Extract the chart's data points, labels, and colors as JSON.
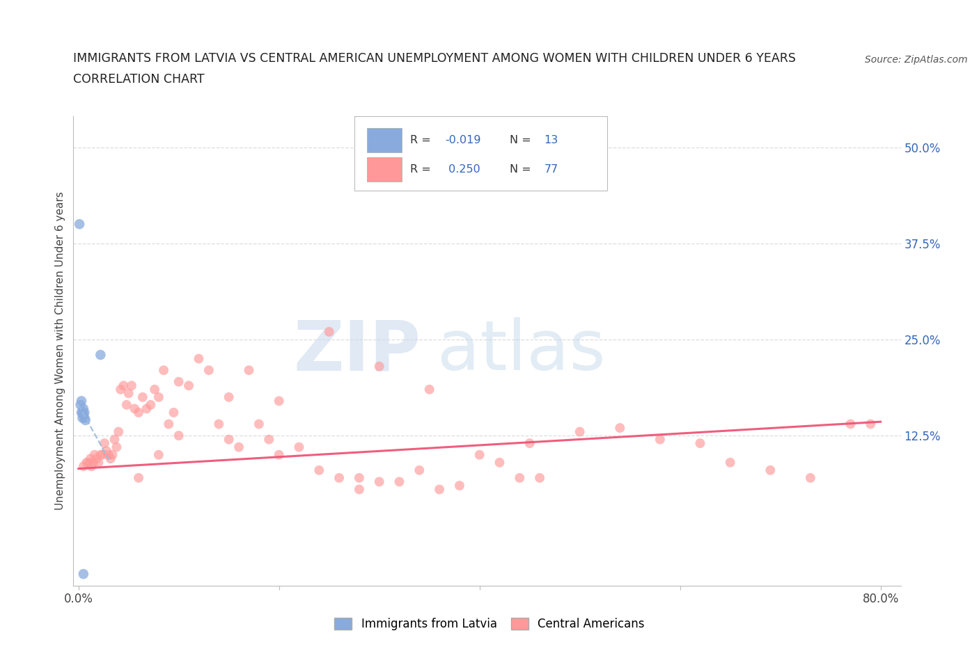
{
  "title_line1": "IMMIGRANTS FROM LATVIA VS CENTRAL AMERICAN UNEMPLOYMENT AMONG WOMEN WITH CHILDREN UNDER 6 YEARS",
  "title_line2": "CORRELATION CHART",
  "source_text": "Source: ZipAtlas.com",
  "ylabel": "Unemployment Among Women with Children Under 6 years",
  "xlim": [
    -0.005,
    0.82
  ],
  "ylim": [
    -0.07,
    0.54
  ],
  "xtick_positions": [
    0.0,
    0.2,
    0.4,
    0.6,
    0.8
  ],
  "xtick_labels": [
    "0.0%",
    "",
    "",
    "",
    "80.0%"
  ],
  "ytick_right": [
    0.125,
    0.25,
    0.375,
    0.5
  ],
  "ytick_right_labels": [
    "12.5%",
    "25.0%",
    "37.5%",
    "50.0%"
  ],
  "watermark_zip": "ZIP",
  "watermark_atlas": "atlas",
  "legend_series1": "Immigrants from Latvia",
  "legend_series2": "Central Americans",
  "blue_color": "#88AADD",
  "pink_color": "#FF9999",
  "blue_line_color": "#99BBDD",
  "pink_line_color": "#EE5577",
  "r_n_color": "#3366BB",
  "title_color": "#222222",
  "right_axis_color": "#3366BB",
  "background_color": "#FFFFFF",
  "grid_color": "#DDDDDD",
  "blue_scatter_x": [
    0.001,
    0.002,
    0.003,
    0.003,
    0.004,
    0.004,
    0.005,
    0.005,
    0.006,
    0.006,
    0.007,
    0.022,
    0.005
  ],
  "blue_scatter_y": [
    0.4,
    0.165,
    0.17,
    0.155,
    0.155,
    0.148,
    0.16,
    0.152,
    0.155,
    0.148,
    0.145,
    0.23,
    -0.055
  ],
  "pink_scatter_x": [
    0.005,
    0.008,
    0.01,
    0.012,
    0.013,
    0.015,
    0.016,
    0.018,
    0.02,
    0.022,
    0.024,
    0.026,
    0.028,
    0.03,
    0.032,
    0.034,
    0.036,
    0.038,
    0.04,
    0.042,
    0.045,
    0.048,
    0.05,
    0.053,
    0.056,
    0.06,
    0.064,
    0.068,
    0.072,
    0.076,
    0.08,
    0.085,
    0.09,
    0.095,
    0.1,
    0.11,
    0.12,
    0.13,
    0.14,
    0.15,
    0.16,
    0.17,
    0.18,
    0.19,
    0.2,
    0.22,
    0.24,
    0.26,
    0.28,
    0.3,
    0.32,
    0.34,
    0.36,
    0.38,
    0.4,
    0.42,
    0.44,
    0.46,
    0.5,
    0.54,
    0.58,
    0.62,
    0.65,
    0.69,
    0.73,
    0.77,
    0.79,
    0.25,
    0.3,
    0.2,
    0.35,
    0.45,
    0.15,
    0.1,
    0.08,
    0.06,
    0.28
  ],
  "pink_scatter_y": [
    0.085,
    0.09,
    0.09,
    0.095,
    0.085,
    0.09,
    0.1,
    0.095,
    0.09,
    0.1,
    0.1,
    0.115,
    0.105,
    0.1,
    0.095,
    0.1,
    0.12,
    0.11,
    0.13,
    0.185,
    0.19,
    0.165,
    0.18,
    0.19,
    0.16,
    0.155,
    0.175,
    0.16,
    0.165,
    0.185,
    0.175,
    0.21,
    0.14,
    0.155,
    0.195,
    0.19,
    0.225,
    0.21,
    0.14,
    0.12,
    0.11,
    0.21,
    0.14,
    0.12,
    0.1,
    0.11,
    0.08,
    0.07,
    0.07,
    0.065,
    0.065,
    0.08,
    0.055,
    0.06,
    0.1,
    0.09,
    0.07,
    0.07,
    0.13,
    0.135,
    0.12,
    0.115,
    0.09,
    0.08,
    0.07,
    0.14,
    0.14,
    0.26,
    0.215,
    0.17,
    0.185,
    0.115,
    0.175,
    0.125,
    0.1,
    0.07,
    0.055
  ],
  "blue_trend_x0": 0.0,
  "blue_trend_x1": 0.032,
  "blue_trend_y0": 0.165,
  "blue_trend_y1": 0.09,
  "pink_trend_x0": 0.0,
  "pink_trend_x1": 0.8,
  "pink_trend_y0": 0.082,
  "pink_trend_y1": 0.143
}
